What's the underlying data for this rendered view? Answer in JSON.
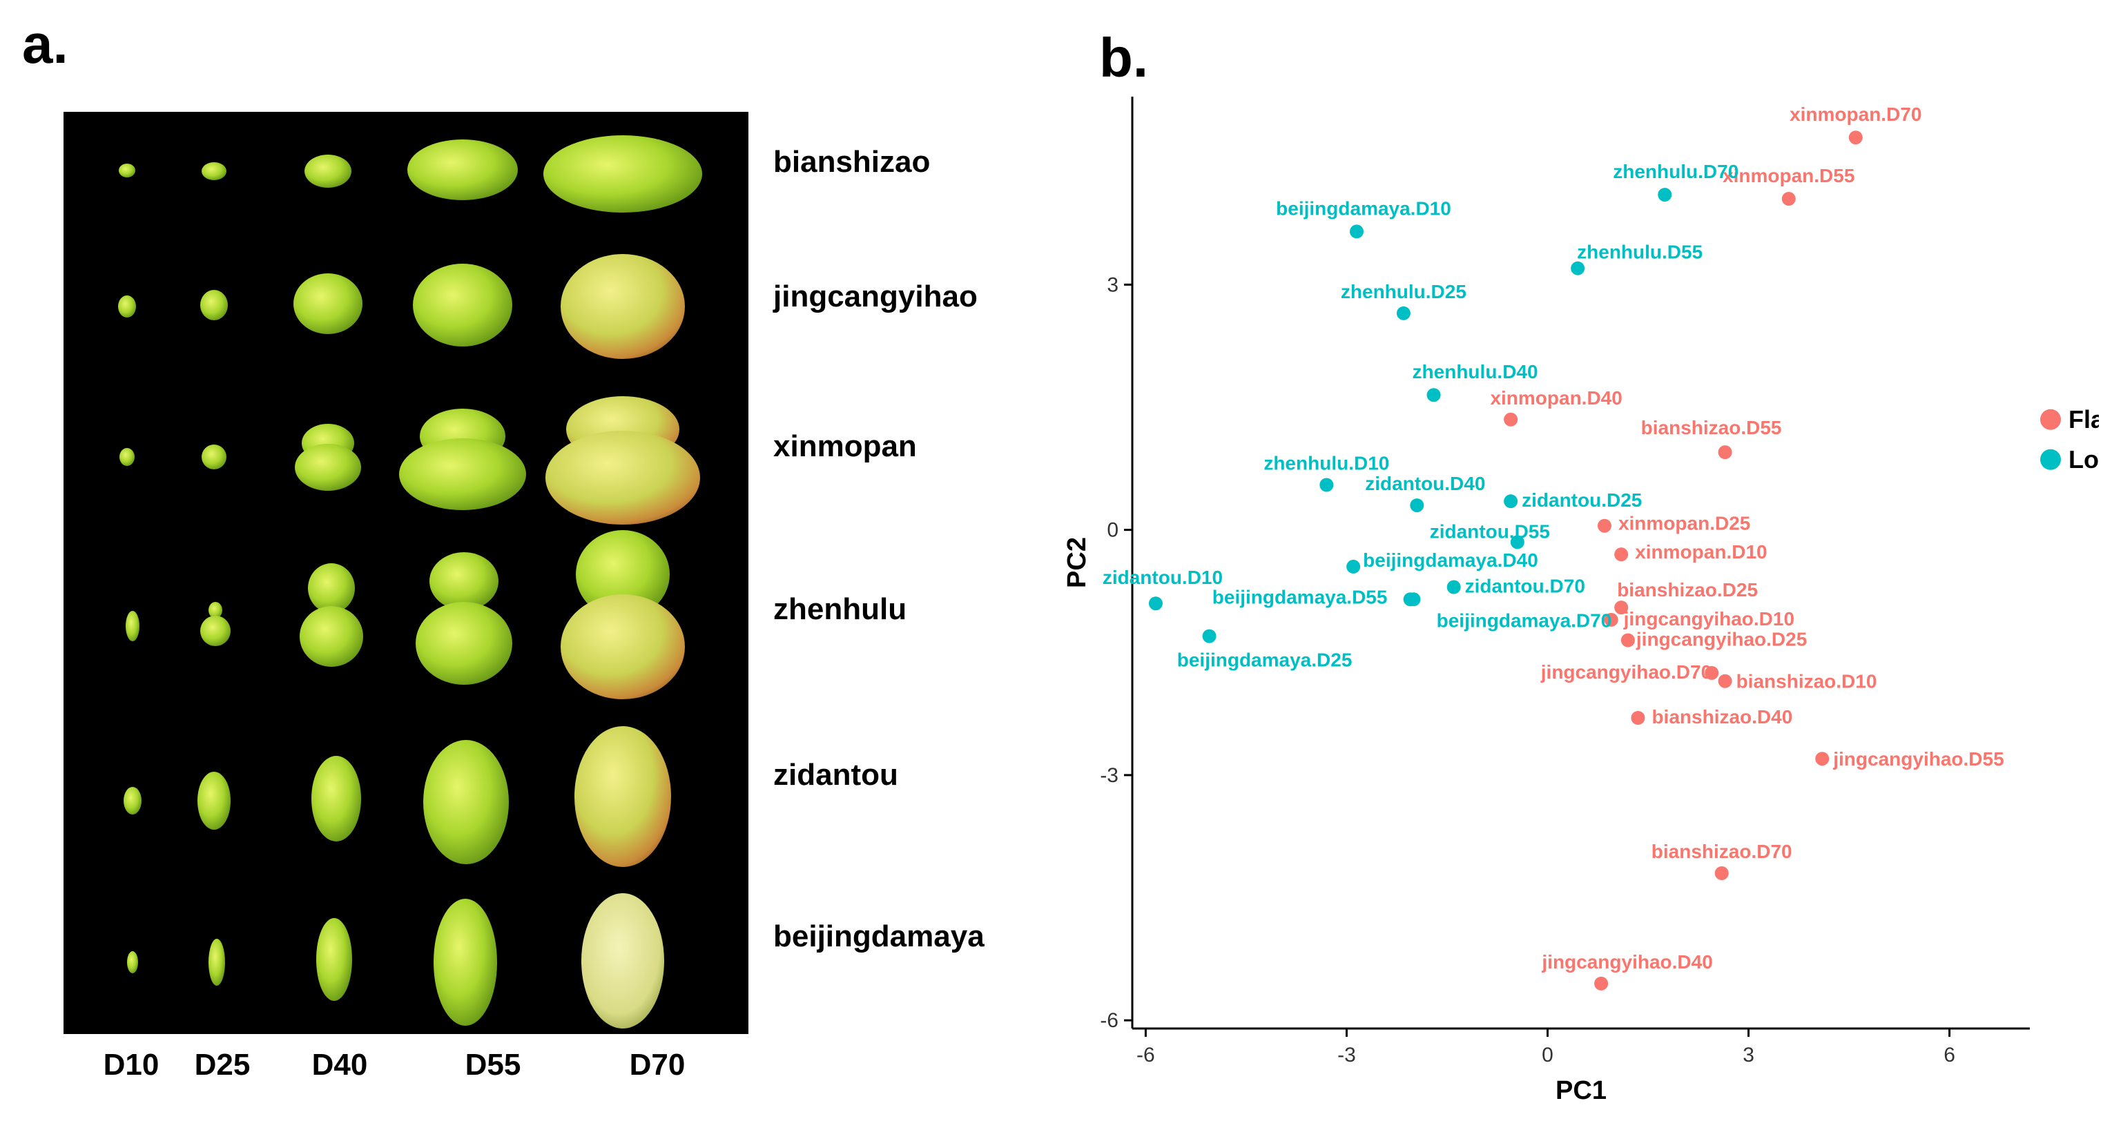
{
  "panel_a": {
    "label": "a.",
    "varieties": [
      "bianshizao",
      "jingcangyihao",
      "xinmopan",
      "zhenhulu",
      "zidantou",
      "beijingdamaya"
    ],
    "stages": [
      "D10",
      "D25",
      "D40",
      "D55",
      "D70"
    ]
  },
  "panel_b": {
    "label": "b."
  },
  "chart_data": {
    "type": "scatter",
    "xlabel": "PC1",
    "ylabel": "PC2",
    "xlim": [
      -6.2,
      7.2
    ],
    "ylim": [
      -6.1,
      5.3
    ],
    "xticks": [
      -6,
      -3,
      0,
      3,
      6
    ],
    "yticks": [
      -6,
      -3,
      0,
      3
    ],
    "legend": {
      "position": "right",
      "entries": [
        {
          "name": "Flat",
          "color": "#F8766D"
        },
        {
          "name": "Long",
          "color": "#00BFC4"
        }
      ]
    },
    "series": [
      {
        "name": "Flat",
        "color": "#F8766D",
        "points": [
          {
            "label": "xinmopan.D70",
            "x": 4.6,
            "y": 4.8
          },
          {
            "label": "xinmopan.D55",
            "x": 3.6,
            "y": 4.05
          },
          {
            "label": "xinmopan.D40",
            "x": -0.55,
            "y": 1.35
          },
          {
            "label": "bianshizao.D55",
            "x": 2.65,
            "y": 0.95
          },
          {
            "label": "xinmopan.D25",
            "x": 0.85,
            "y": 0.05
          },
          {
            "label": "xinmopan.D10",
            "x": 1.1,
            "y": -0.3
          },
          {
            "label": "bianshizao.D25",
            "x": 1.1,
            "y": -0.95
          },
          {
            "label": "jingcangyihao.D10",
            "x": 0.95,
            "y": -1.1
          },
          {
            "label": "jingcangyihao.D25",
            "x": 1.2,
            "y": -1.35
          },
          {
            "label": "jingcangyihao.D70",
            "x": 2.45,
            "y": -1.75
          },
          {
            "label": "bianshizao.D10",
            "x": 2.65,
            "y": -1.85
          },
          {
            "label": "bianshizao.D40",
            "x": 1.35,
            "y": -2.3
          },
          {
            "label": "jingcangyihao.D55",
            "x": 4.1,
            "y": -2.8
          },
          {
            "label": "bianshizao.D70",
            "x": 2.6,
            "y": -4.2
          },
          {
            "label": "jingcangyihao.D40",
            "x": 0.8,
            "y": -5.55
          }
        ]
      },
      {
        "name": "Long",
        "color": "#00BFC4",
        "points": [
          {
            "label": "zhenhulu.D70",
            "x": 1.75,
            "y": 4.1
          },
          {
            "label": "beijingdamaya.D10",
            "x": -2.85,
            "y": 3.65
          },
          {
            "label": "zhenhulu.D55",
            "x": 0.45,
            "y": 3.2
          },
          {
            "label": "zhenhulu.D25",
            "x": -2.15,
            "y": 2.65
          },
          {
            "label": "zhenhulu.D40",
            "x": -1.7,
            "y": 1.65
          },
          {
            "label": "zhenhulu.D10",
            "x": -3.3,
            "y": 0.55
          },
          {
            "label": "zidantou.D40",
            "x": -1.95,
            "y": 0.3
          },
          {
            "label": "zidantou.D25",
            "x": -0.55,
            "y": 0.35
          },
          {
            "label": "zidantou.D55",
            "x": -0.45,
            "y": -0.15
          },
          {
            "label": "beijingdamaya.D40",
            "x": -2.9,
            "y": -0.45
          },
          {
            "label": "zidantou.D70",
            "x": -1.4,
            "y": -0.7
          },
          {
            "label": "zidantou.D10",
            "x": -5.85,
            "y": -0.9
          },
          {
            "label": "beijingdamaya.D55",
            "x": -2.05,
            "y": -0.85
          },
          {
            "label": "beijingdamaya.D70",
            "x": -2.0,
            "y": -0.85
          },
          {
            "label": "beijingdamaya.D25",
            "x": -5.05,
            "y": -1.3
          }
        ]
      }
    ]
  }
}
